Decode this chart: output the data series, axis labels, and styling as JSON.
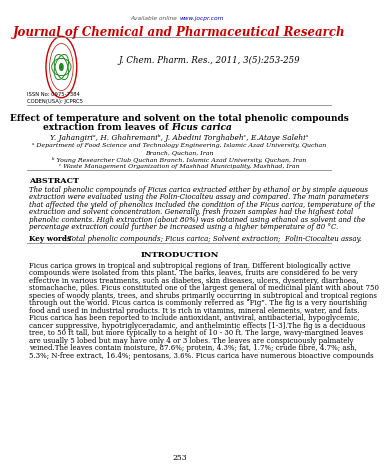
{
  "available_online_pre": "Available online ",
  "available_online_url": "www.jocpr.com",
  "journal_title": "Journal of Chemical and Pharmaceutical Research",
  "journal_citation": "J. Chem. Pharm. Res., 2011, 3(5):253-259",
  "issn": "ISSN No: 0975-7384",
  "coden": "CODEN(USA): JCPRC5",
  "paper_title_line1": "Effect of temperature and solvent on the total phenolic compounds",
  "paper_title_line2_normal": "extraction from leaves of ",
  "paper_title_line2_italic": "Ficus carica",
  "authors": "Y. Jahangiriᵃ, H. Ghahremaniᵇ, J. Abedini Torghabehᶜ, E.Ataye Salehiᵃ",
  "affil_a": "ᵃ Department of Food Science and Technology Engineering, Islamic Azad University, Quchan",
  "affil_a2": "Branch, Quchan, Iran",
  "affil_b": "ᵇ Young Researcher Club Quchan Branch, Islamic Azad University, Quchan, Iran",
  "affil_c": "ᶜ Waste Management Organization of Mashhad Municipality, Mashhad, Iran",
  "abstract_title": "ABSTRACT",
  "abstract_lines": [
    "The total phenolic compounds of Ficus carica extracted either by ethanol or by simple aqueous",
    "extraction were evaluated using the Folin-Ciocalteu assay and compared. The main parameters",
    "that affected the yield of phenolics included the condition of the Ficus carica, temperature of the",
    "extraction and solvent concentration. Generally, fresh frozen samples had the highest total",
    "phenolic contents. High extraction (about 80%) was obtained using ethanol as solvent and the",
    "percentage extraction could further be increased using a higher temperature of 80 °C."
  ],
  "keywords_label": "Key words",
  "keywords_body": ": Total phenolic compounds; Ficus carica; Solvent extraction;  Folin-Ciocalteu assay.",
  "intro_title": "INTRODUCTION",
  "intro_lines": [
    "Ficus carica grows in tropical and subtropical regions of Iran. Different biologically active",
    "compounds were isolated from this plant. The barks, leaves, fruits are considered to be very",
    "effective in various treatments, such as diabetes, skin diseases, ulcers, dysentery, diarrhoea,",
    "stomachache, piles. Ficus constituted one of the largest general of medicinal plant with about 750",
    "species of woody plants, trees, and shrubs primarily occurring in subtropical and tropical regions",
    "through out the world. Ficus carica is commonly referred as “Fig”. The fig is a very nourishing",
    "food and used in industrial products. It is rich in vitamins, mineral elements, water, and fats.",
    "Ficus carica has been reported to include antioxidant, antiviral, antibacterial, hypoglycemic,",
    "cancer suppressive, hypotriglyceradamic, and anthelmintic effects [1-3].The fig is a deciduous",
    "tree, to 50 ft tall, but more typically to a height of 10 - 30 ft. The large, wavy-margined leaves",
    "are usually 5 lobed but may have only 4 or 3 lobes. The leaves are conspicuously palmately",
    "veined.The leaves contain moisture, 87.6%; protein, 4.3%; fat, 1.7%; crude fibre, 4.7%; ash,",
    "5.3%; N-free extract, 16.4%; pentosans, 3.6%. Ficus carica have numerous bioactive compounds"
  ],
  "page_number": "253",
  "bg_color": "#ffffff",
  "red_color": "#cc0000",
  "blue_color": "#0000cc",
  "text_color": "#000000",
  "gray_color": "#444444",
  "line_color": "#888888"
}
